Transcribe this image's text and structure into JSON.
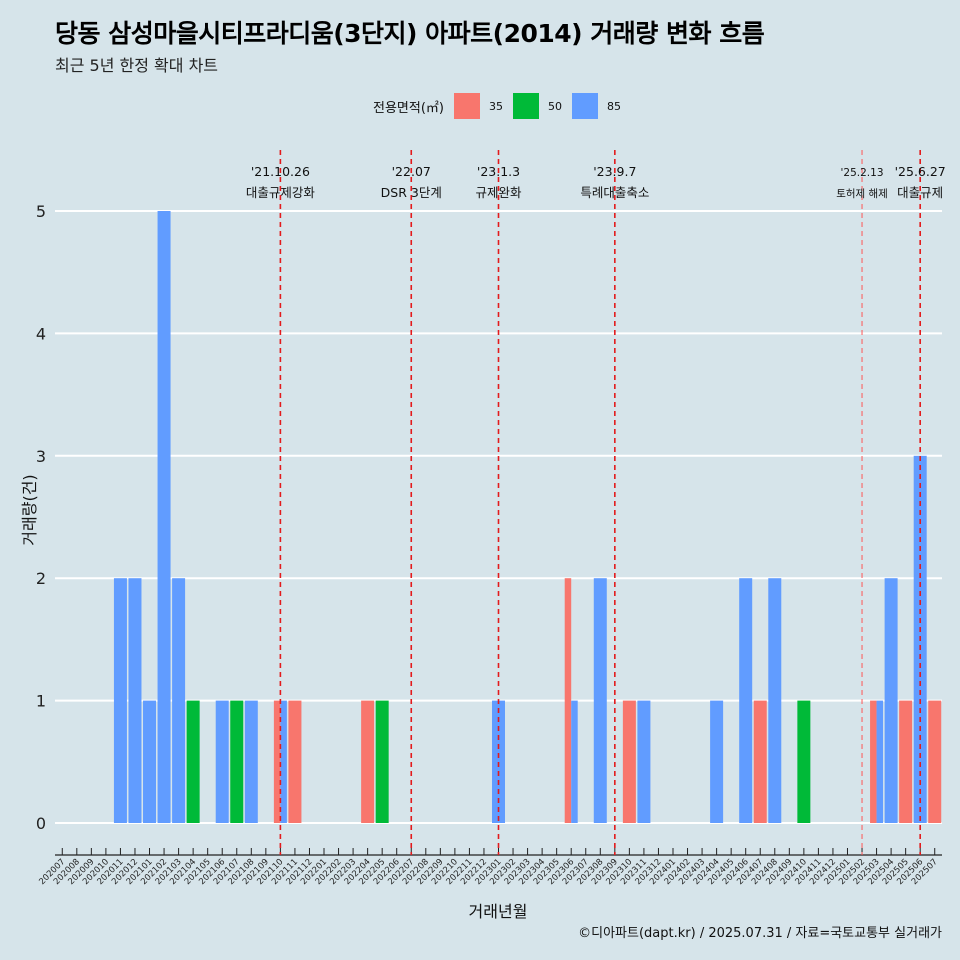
{
  "title": "당동 삼성마을시티프라디움(3단지) 아파트(2014) 거래량 변화 흐름",
  "subtitle": "최근 5년 한정 확대 차트",
  "caption": "©디아파트(dapt.kr) / 2025.07.31 / 자료=국토교통부 실거래가",
  "legend": {
    "title": "전용면적(㎡)",
    "items": [
      {
        "label": "35",
        "color": "#f8766d"
      },
      {
        "label": "50",
        "color": "#00ba38"
      },
      {
        "label": "85",
        "color": "#619cff"
      }
    ]
  },
  "chart_data": {
    "type": "bar",
    "xlabel": "거래년월",
    "ylabel": "거래량(건)",
    "ylim": [
      0,
      5
    ],
    "yticks": [
      0,
      1,
      2,
      3,
      4,
      5
    ],
    "grid": "horizontal",
    "legend_position": "top",
    "categories": [
      "202007",
      "202008",
      "202009",
      "202010",
      "202011",
      "202012",
      "202101",
      "202102",
      "202103",
      "202104",
      "202105",
      "202106",
      "202107",
      "202108",
      "202109",
      "202110",
      "202111",
      "202112",
      "202201",
      "202202",
      "202203",
      "202204",
      "202205",
      "202206",
      "202207",
      "202208",
      "202209",
      "202210",
      "202211",
      "202212",
      "202301",
      "202302",
      "202303",
      "202304",
      "202305",
      "202306",
      "202307",
      "202308",
      "202309",
      "202310",
      "202311",
      "202312",
      "202401",
      "202402",
      "202403",
      "202404",
      "202405",
      "202406",
      "202407",
      "202408",
      "202409",
      "202410",
      "202411",
      "202412",
      "202501",
      "202502",
      "202503",
      "202504",
      "202505",
      "202506",
      "202507"
    ],
    "series": [
      {
        "name": "35",
        "color": "#f8766d",
        "values": [
          0,
          0,
          0,
          0,
          0,
          0,
          0,
          0,
          0,
          0,
          0,
          0,
          0,
          0,
          0,
          1,
          1,
          0,
          0,
          0,
          0,
          1,
          0,
          0,
          0,
          0,
          0,
          0,
          0,
          0,
          0,
          0,
          0,
          0,
          0,
          2,
          0,
          0,
          0,
          1,
          0,
          0,
          0,
          0,
          0,
          0,
          0,
          0,
          1,
          0,
          0,
          0,
          0,
          0,
          0,
          0,
          1,
          0,
          1,
          0,
          1
        ]
      },
      {
        "name": "50",
        "color": "#00ba38",
        "values": [
          0,
          0,
          0,
          0,
          0,
          0,
          0,
          0,
          0,
          1,
          0,
          0,
          1,
          0,
          0,
          0,
          0,
          0,
          0,
          0,
          0,
          0,
          1,
          0,
          0,
          0,
          0,
          0,
          0,
          0,
          0,
          0,
          0,
          0,
          0,
          0,
          0,
          0,
          0,
          0,
          0,
          0,
          0,
          0,
          0,
          0,
          0,
          0,
          0,
          0,
          0,
          1,
          0,
          0,
          0,
          0,
          0,
          0,
          0,
          0,
          0
        ]
      },
      {
        "name": "85",
        "color": "#619cff",
        "values": [
          0,
          0,
          0,
          0,
          2,
          2,
          1,
          5,
          2,
          0,
          0,
          1,
          0,
          1,
          0,
          1,
          0,
          0,
          0,
          0,
          0,
          0,
          0,
          0,
          0,
          0,
          0,
          0,
          0,
          0,
          1,
          0,
          0,
          0,
          0,
          1,
          0,
          2,
          0,
          0,
          1,
          0,
          0,
          0,
          0,
          1,
          0,
          2,
          0,
          2,
          0,
          0,
          0,
          0,
          0,
          0,
          1,
          2,
          0,
          3,
          0
        ]
      }
    ],
    "annotations": [
      {
        "category": "202110",
        "date": "'21.10.26",
        "label": "대출규제강화",
        "style": "major"
      },
      {
        "category": "202207",
        "date": "'22.07",
        "label": "DSR 3단계",
        "style": "major"
      },
      {
        "category": "202301",
        "date": "'23.1.3",
        "label": "규제완화",
        "style": "major"
      },
      {
        "category": "202309",
        "date": "'23.9.7",
        "label": "특례대출축소",
        "style": "major"
      },
      {
        "category": "202502",
        "date": "'25.2.13",
        "label": "토허제 해제",
        "style": "minor"
      },
      {
        "category": "202506",
        "date": "'25.6.27",
        "label": "대출규제",
        "style": "major"
      }
    ]
  }
}
